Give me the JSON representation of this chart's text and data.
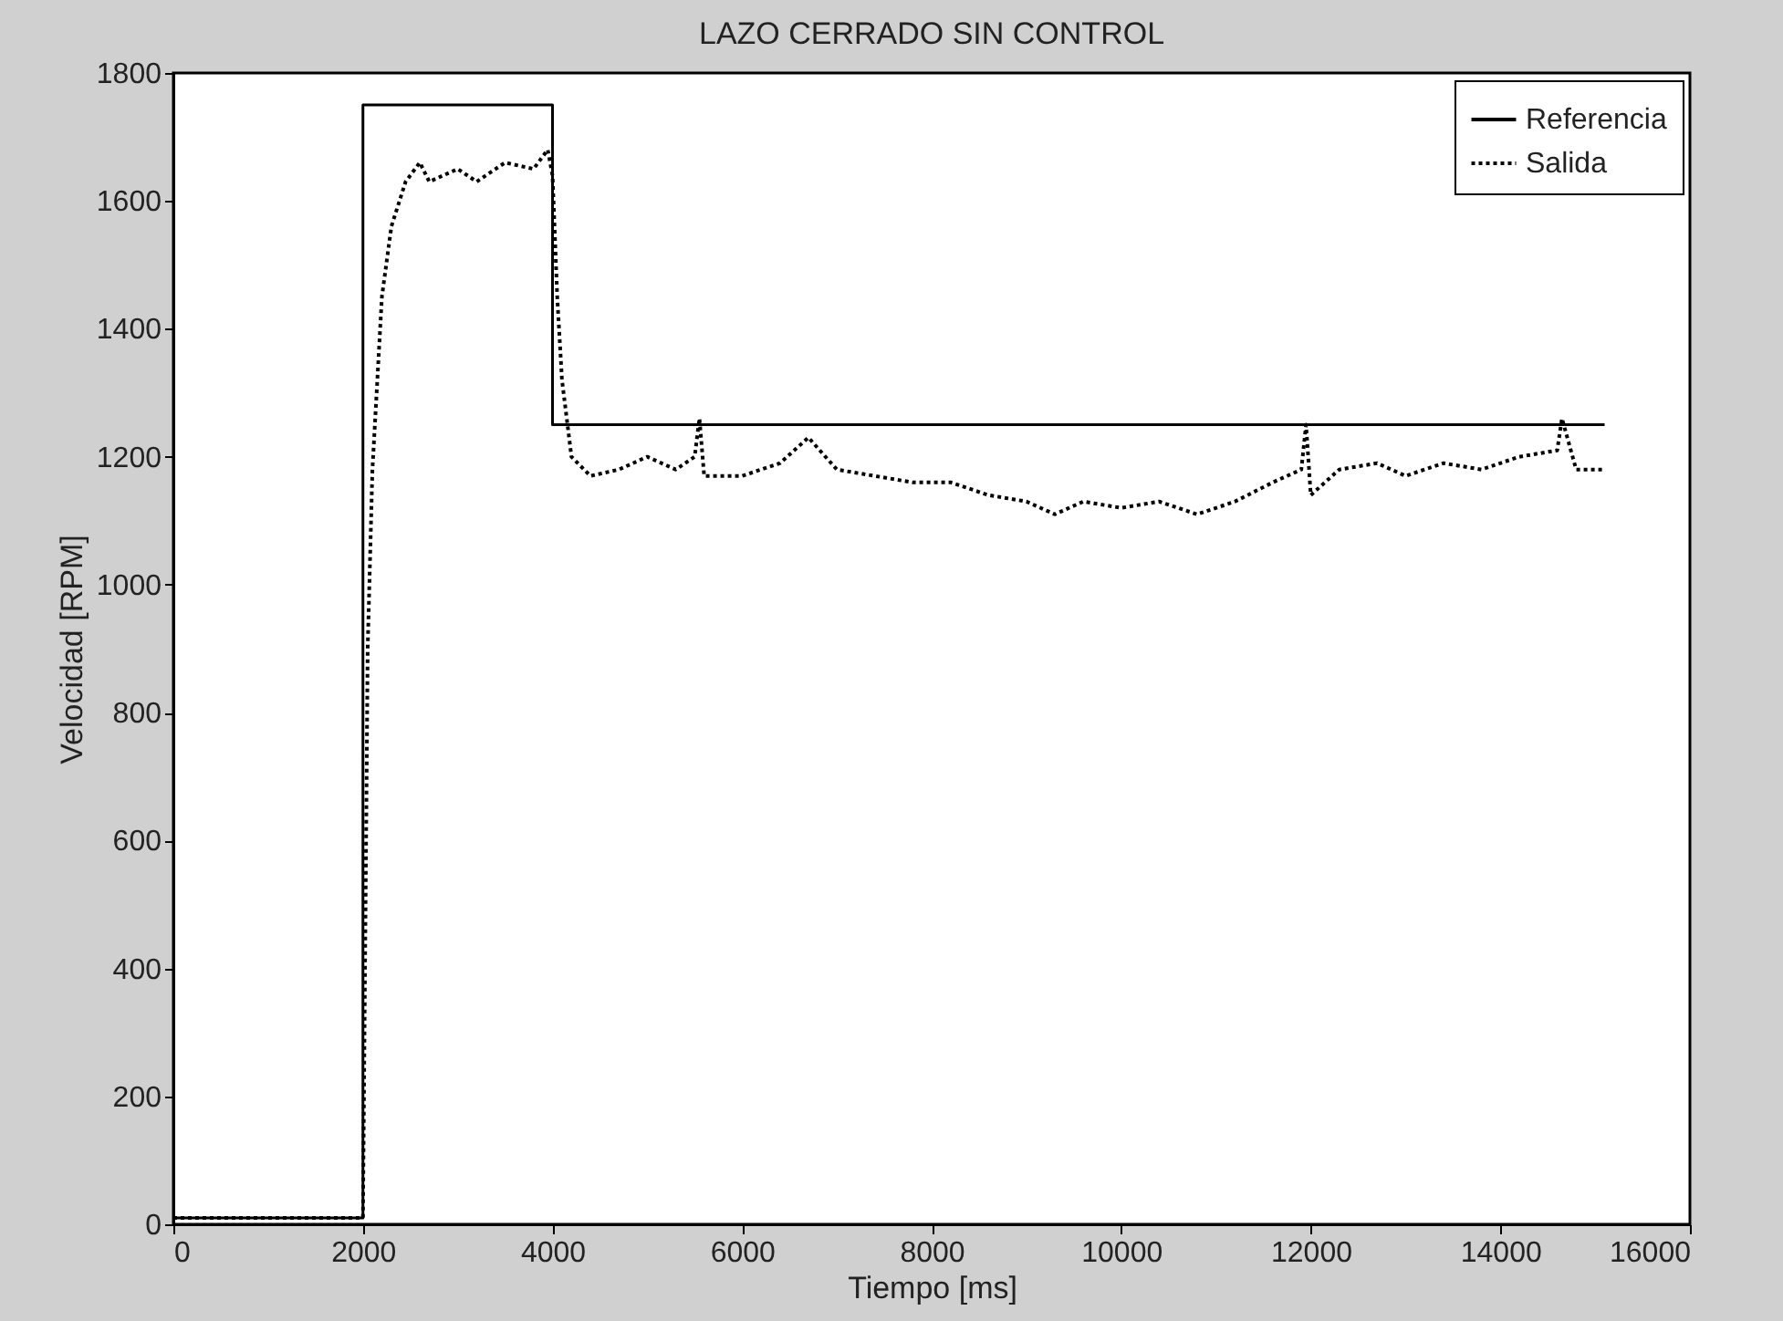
{
  "chart_data": {
    "type": "line",
    "title": "LAZO CERRADO SIN CONTROL",
    "xlabel": "Tiempo [ms]",
    "ylabel": "Velocidad [RPM]",
    "xlim": [
      0,
      16000
    ],
    "ylim": [
      0,
      1800
    ],
    "xticks": [
      0,
      2000,
      4000,
      6000,
      8000,
      10000,
      12000,
      14000,
      16000
    ],
    "yticks": [
      0,
      200,
      400,
      600,
      800,
      1000,
      1200,
      1400,
      1600,
      1800
    ],
    "grid": false,
    "legend": "top right",
    "series": [
      {
        "name": "Referencia",
        "type": "step",
        "color": "#000000",
        "line_style": "solid",
        "x": [
          0,
          2000,
          4000,
          15100
        ],
        "values": [
          10,
          1750,
          1250,
          1250
        ]
      },
      {
        "name": "Salida",
        "color": "#000000",
        "line_style": "dotted",
        "x": [
          0,
          1950,
          2000,
          2050,
          2100,
          2200,
          2300,
          2450,
          2600,
          2700,
          3000,
          3200,
          3500,
          3800,
          3950,
          4000,
          4050,
          4100,
          4200,
          4400,
          4700,
          5000,
          5300,
          5500,
          5550,
          5600,
          6000,
          6400,
          6700,
          7000,
          7400,
          7800,
          8200,
          8600,
          9000,
          9300,
          9600,
          10000,
          10400,
          10800,
          11200,
          11600,
          11900,
          11950,
          12000,
          12300,
          12700,
          13000,
          13400,
          13800,
          14200,
          14600,
          14650,
          14800,
          15100
        ],
        "values": [
          10,
          10,
          10,
          900,
          1180,
          1450,
          1560,
          1630,
          1660,
          1630,
          1650,
          1630,
          1660,
          1650,
          1680,
          1640,
          1450,
          1320,
          1200,
          1170,
          1180,
          1200,
          1180,
          1200,
          1260,
          1170,
          1170,
          1190,
          1230,
          1180,
          1170,
          1160,
          1160,
          1140,
          1130,
          1110,
          1130,
          1120,
          1130,
          1110,
          1130,
          1160,
          1180,
          1250,
          1140,
          1180,
          1190,
          1170,
          1190,
          1180,
          1200,
          1210,
          1260,
          1180,
          1180
        ]
      }
    ]
  }
}
